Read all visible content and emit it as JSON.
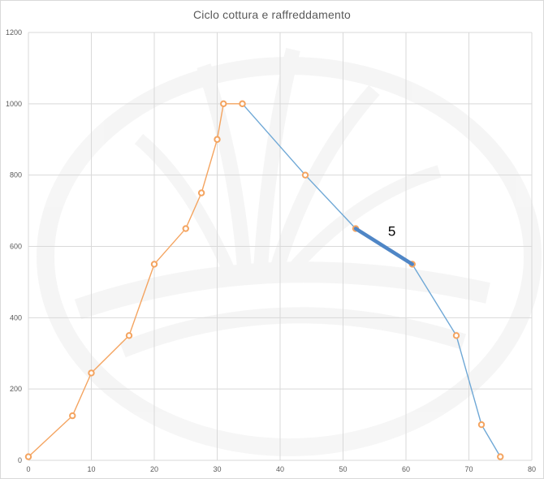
{
  "chart_data": {
    "type": "scatter",
    "title": "Ciclo cottura e raffreddamento",
    "xlabel": "",
    "ylabel": "",
    "xlim": [
      0,
      80
    ],
    "ylim": [
      0,
      1200
    ],
    "xticks": [
      0,
      10,
      20,
      30,
      40,
      50,
      60,
      70,
      80
    ],
    "yticks": [
      0,
      200,
      400,
      600,
      800,
      1000,
      1200
    ],
    "grid": true,
    "legend": "none",
    "series": [
      {
        "color": "#f4b183",
        "line_color": "#f4a460",
        "marker": "circle-open",
        "points": [
          [
            0,
            10
          ],
          [
            7,
            125
          ],
          [
            10,
            245
          ],
          [
            16,
            350
          ],
          [
            20,
            550
          ],
          [
            25,
            650
          ],
          [
            27.5,
            750
          ],
          [
            30,
            900
          ],
          [
            31,
            1000
          ],
          [
            34,
            1000
          ]
        ]
      },
      {
        "color": "#6fa8d6",
        "marker": "circle-open-orange",
        "points": [
          [
            34,
            1000
          ],
          [
            44,
            800
          ],
          [
            52,
            650
          ],
          [
            61,
            550
          ],
          [
            68,
            350
          ],
          [
            72,
            100
          ],
          [
            75,
            10
          ]
        ]
      }
    ],
    "highlight_segment": {
      "from": [
        52,
        650
      ],
      "to": [
        61,
        550
      ],
      "label": "5",
      "color": "#4f86c6"
    }
  }
}
